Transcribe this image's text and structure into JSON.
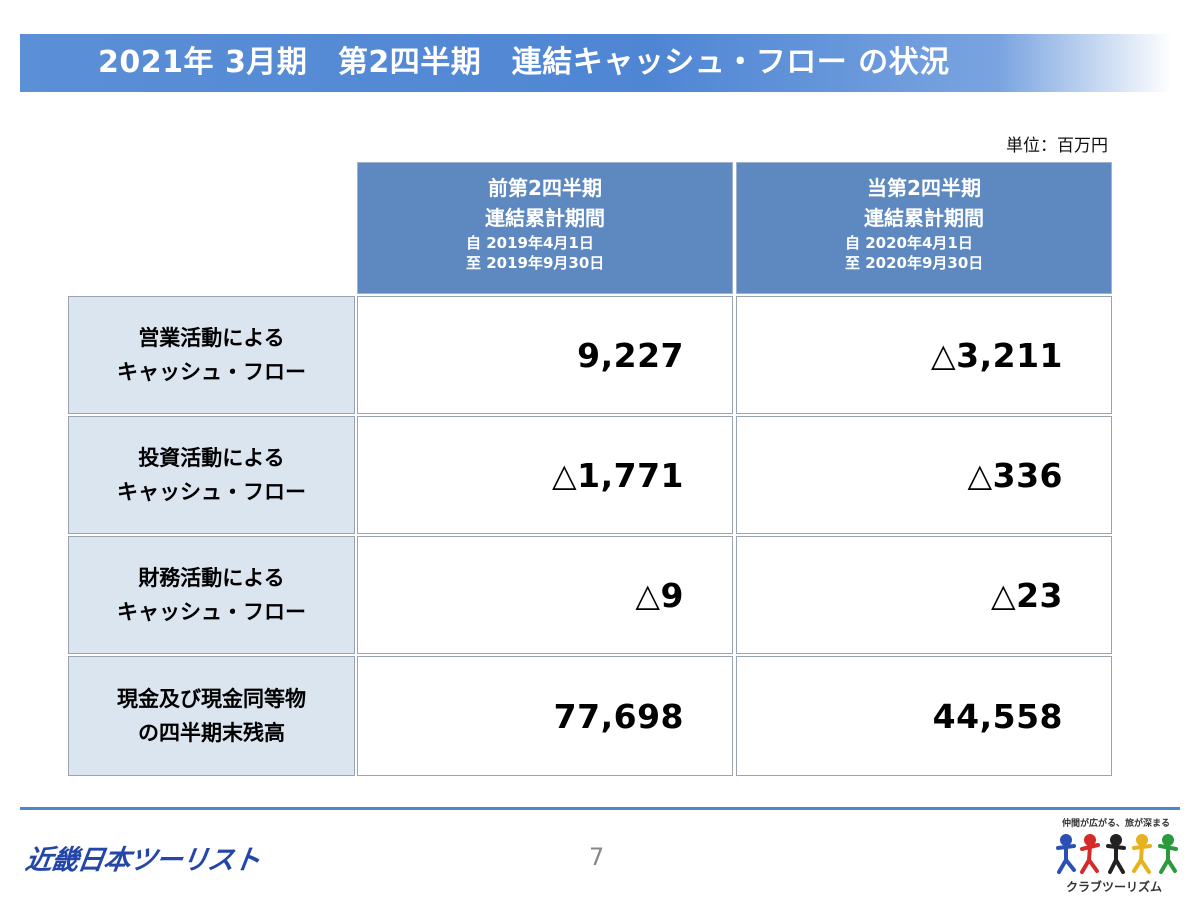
{
  "slide": {
    "title": "2021年 3月期　第2四半期　連結キャッシュ・フロー の状況",
    "unit": "単位：百万円",
    "page_number": "7"
  },
  "table": {
    "columns": [
      {
        "line1": "前第2四半期",
        "line2": "連結累計期間",
        "date_from": "自 2019年4月1日",
        "date_to": "至 2019年9月30日"
      },
      {
        "line1": "当第2四半期",
        "line2": "連結累計期間",
        "date_from": "自 2020年4月1日",
        "date_to": "至 2020年9月30日"
      }
    ],
    "rows": [
      {
        "label1": "営業活動による",
        "label2": "キャッシュ・フロー",
        "prev_sign": "",
        "prev": "9,227",
        "curr_sign": "△",
        "curr": "3,211"
      },
      {
        "label1": "投資活動による",
        "label2": "キャッシュ・フロー",
        "prev_sign": "△ ",
        "prev": "1,771",
        "curr_sign": "△",
        "curr": "336"
      },
      {
        "label1": "財務活動による",
        "label2": "キャッシュ・フロー",
        "prev_sign": "△ ",
        "prev": "9",
        "curr_sign": "△",
        "curr": "23"
      },
      {
        "label1": "現金及び現金同等物",
        "label2": "の四半期末残高",
        "prev_sign": "",
        "prev": "77,698",
        "curr_sign": "",
        "curr": "44,558"
      }
    ]
  },
  "footer": {
    "company_logo": "近畿日本ツーリスト",
    "club_tagline": "仲間が広がる、旅が深まる",
    "club_brand": "クラブツーリズム",
    "accent_color": "#4f86d4",
    "header_color": "#5e88c0",
    "label_bg_color": "#dbe5f0"
  }
}
